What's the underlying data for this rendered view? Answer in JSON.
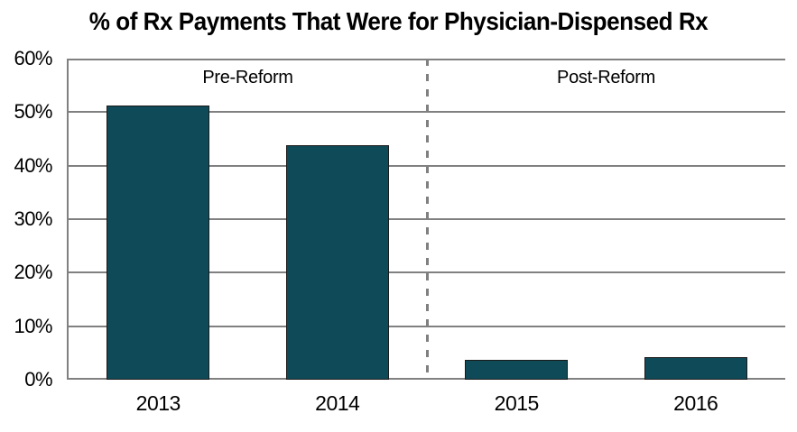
{
  "title": "% of Rx Payments That Were for Physician-Dispensed Rx",
  "colors": {
    "bar_fill": "#0E4A57",
    "bar_border": "#1A1A1A",
    "grid": "#808080",
    "divider": "#808080",
    "text": "#000000",
    "background": "#FFFFFF"
  },
  "chart_data": {
    "type": "bar",
    "title": "% of Rx Payments That Were for Physician-Dispensed Rx",
    "categories": [
      "2013",
      "2014",
      "2015",
      "2016"
    ],
    "values": [
      51.2,
      43.8,
      3.7,
      4.2
    ],
    "xlabel": "",
    "ylabel": "",
    "ylim": [
      0,
      60
    ],
    "ytick_step": 10,
    "ytick_labels": [
      "0%",
      "10%",
      "20%",
      "30%",
      "40%",
      "50%",
      "60%"
    ],
    "grid": true,
    "legend": "none",
    "pre_label": "Pre-Reform",
    "post_label": "Post-Reform",
    "divider_after_category": "2014",
    "divider_style": "dashed"
  }
}
